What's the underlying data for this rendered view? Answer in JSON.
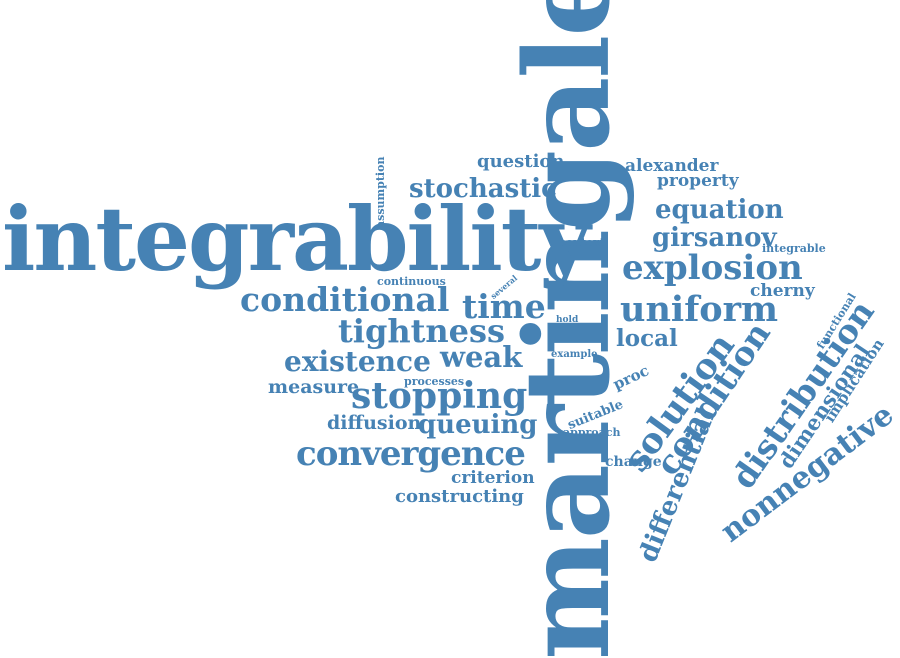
{
  "color": "#4682B4",
  "words": [
    "martingale",
    "integrability",
    "explosion",
    "uniform",
    "conditional",
    "convergence",
    "stopping",
    "tightness",
    "existence",
    "time",
    "weak",
    "solution",
    "condition",
    "distribution",
    "differential",
    "nonnegative",
    "dimensional",
    "stochastic",
    "equation",
    "girsanov",
    "queuing",
    "local",
    "diffusion",
    "measure",
    "question",
    "alexander",
    "property",
    "cherny",
    "criterion",
    "constructing",
    "change",
    "implication",
    "proc",
    "suitable",
    "approach",
    "functional",
    "integrable",
    "assumption",
    "context",
    "continuous",
    "several",
    "hold",
    "example",
    "processes"
  ]
}
